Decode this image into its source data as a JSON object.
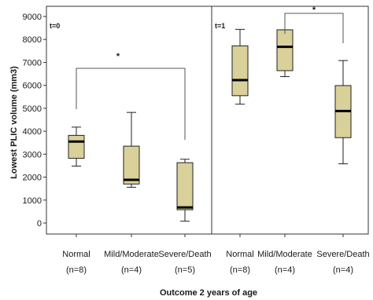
{
  "chart_data": {
    "type": "boxplot",
    "ylabel": "Lowest PLIC volume (mm3)",
    "xlabel": "Outcome 2 years of age",
    "ylim": [
      -400,
      9400
    ],
    "yticks": [
      0,
      1000,
      2000,
      3000,
      4000,
      5000,
      6000,
      7000,
      8000,
      9000
    ],
    "grid": false,
    "box_color": "#d9d09a",
    "panels": [
      {
        "label": "t=0",
        "groups": [
          {
            "name": "Normal",
            "n": "(n=8)",
            "min": 2480,
            "q1": 2820,
            "median": 3550,
            "q3": 3820,
            "max": 4180
          },
          {
            "name": "Mild/Moderate",
            "n": "(n=4)",
            "min": 1560,
            "q1": 1700,
            "median": 1880,
            "q3": 3350,
            "max": 4820
          },
          {
            "name": "Severe/Death",
            "n": "(n=5)",
            "min": 80,
            "q1": 580,
            "median": 680,
            "q3": 2630,
            "max": 2780
          }
        ],
        "significance": {
          "from": "Normal",
          "to": "Severe/Death",
          "label": "*"
        }
      },
      {
        "label": "t=1",
        "groups": [
          {
            "name": "Normal",
            "n": "(n=8)",
            "min": 5180,
            "q1": 5550,
            "median": 6230,
            "q3": 7720,
            "max": 8440
          },
          {
            "name": "Mild/Moderate",
            "n": "(n=4)",
            "min": 6380,
            "q1": 6640,
            "median": 7680,
            "q3": 8420,
            "max": 8420
          },
          {
            "name": "Severe/Death",
            "n": "(n=4)",
            "min": 2580,
            "q1": 3720,
            "median": 4880,
            "q3": 5990,
            "max": 7080
          }
        ],
        "significance": {
          "from": "Mild/Moderate",
          "to": "Severe/Death",
          "label": "*"
        }
      }
    ]
  }
}
